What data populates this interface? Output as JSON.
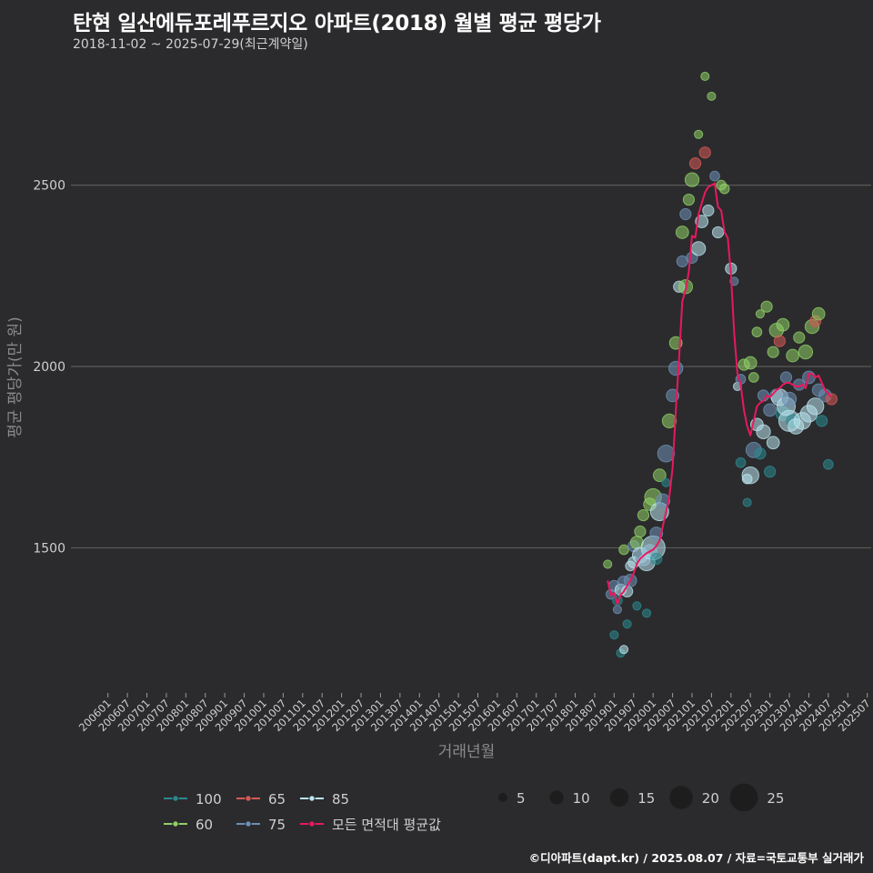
{
  "title": "탄현 일산에듀포레푸르지오 아파트(2018) 월별 평균 평당가",
  "subtitle": "2018-11-02 ~ 2025-07-29(최근계약일)",
  "footer": "©디아파트(dapt.kr) / 2025.08.07 / 자료=국토교통부 실거래가",
  "colors": {
    "background": "#2b2b2d",
    "grid": "#5a5a5a",
    "avg_line": "#e8195e",
    "area_100": "#2a8a8f",
    "area_65": "#d65a55",
    "area_85": "#b9e4ee",
    "area_60": "#8fd066",
    "area_75": "#6e8fb5"
  },
  "chart_data": {
    "type": "scatter",
    "xlabel": "거래년월",
    "ylabel": "평균 평당가(만 원)",
    "ylim": [
      1100,
      2860
    ],
    "yticks": [
      1500,
      2000,
      2500
    ],
    "grid": true,
    "xticks": [
      "200601",
      "200607",
      "200701",
      "200707",
      "200801",
      "200807",
      "200901",
      "200907",
      "201001",
      "201007",
      "201101",
      "201107",
      "201201",
      "201207",
      "201301",
      "201307",
      "201401",
      "201407",
      "201501",
      "201507",
      "201601",
      "201607",
      "201701",
      "201707",
      "201801",
      "201807",
      "201901",
      "201907",
      "202001",
      "202007",
      "202101",
      "202107",
      "202201",
      "202207",
      "202301",
      "202307",
      "202401",
      "202407",
      "202501",
      "202507"
    ],
    "legend_areas": [
      {
        "name": "100",
        "color_key": "area_100"
      },
      {
        "name": "60",
        "color_key": "area_60"
      },
      {
        "name": "65",
        "color_key": "area_65"
      },
      {
        "name": "75",
        "color_key": "area_75"
      },
      {
        "name": "85",
        "color_key": "area_85"
      },
      {
        "name": "모든 면적대 평균값",
        "color_key": "avg_line"
      }
    ],
    "legend_sizes": [
      5,
      10,
      15,
      20,
      25
    ],
    "avg_series": {
      "name": "모든 면적대 평균값",
      "points": [
        [
          "2018-11",
          1410
        ],
        [
          "2018-12",
          1370
        ],
        [
          "2019-01",
          1375
        ],
        [
          "2019-02",
          1345
        ],
        [
          "2019-03",
          1370
        ],
        [
          "2019-04",
          1380
        ],
        [
          "2019-05",
          1395
        ],
        [
          "2019-06",
          1410
        ],
        [
          "2019-07",
          1430
        ],
        [
          "2019-08",
          1455
        ],
        [
          "2019-09",
          1470
        ],
        [
          "2019-10",
          1478
        ],
        [
          "2019-11",
          1485
        ],
        [
          "2019-12",
          1490
        ],
        [
          "2020-01",
          1495
        ],
        [
          "2020-02",
          1505
        ],
        [
          "2020-03",
          1520
        ],
        [
          "2020-04",
          1560
        ],
        [
          "2020-05",
          1600
        ],
        [
          "2020-06",
          1640
        ],
        [
          "2020-07",
          1720
        ],
        [
          "2020-08",
          1880
        ],
        [
          "2020-09",
          2020
        ],
        [
          "2020-10",
          2180
        ],
        [
          "2020-11",
          2210
        ],
        [
          "2020-12",
          2260
        ],
        [
          "2021-01",
          2360
        ],
        [
          "2021-02",
          2355
        ],
        [
          "2021-03",
          2420
        ],
        [
          "2021-04",
          2450
        ],
        [
          "2021-05",
          2480
        ],
        [
          "2021-06",
          2495
        ],
        [
          "2021-07",
          2500
        ],
        [
          "2021-08",
          2505
        ],
        [
          "2021-09",
          2440
        ],
        [
          "2021-10",
          2430
        ],
        [
          "2021-11",
          2370
        ],
        [
          "2021-12",
          2355
        ],
        [
          "2022-01",
          2255
        ],
        [
          "2022-02",
          2090
        ],
        [
          "2022-03",
          1980
        ],
        [
          "2022-04",
          1950
        ],
        [
          "2022-05",
          1880
        ],
        [
          "2022-06",
          1835
        ],
        [
          "2022-07",
          1810
        ],
        [
          "2022-08",
          1850
        ],
        [
          "2022-09",
          1890
        ],
        [
          "2022-10",
          1900
        ],
        [
          "2022-11",
          1905
        ],
        [
          "2022-12",
          1920
        ],
        [
          "2023-01",
          1915
        ],
        [
          "2023-02",
          1925
        ],
        [
          "2023-03",
          1935
        ],
        [
          "2023-04",
          1940
        ],
        [
          "2023-05",
          1950
        ],
        [
          "2023-06",
          1955
        ],
        [
          "2023-07",
          1955
        ],
        [
          "2023-08",
          1950
        ],
        [
          "2023-09",
          1945
        ],
        [
          "2023-10",
          1945
        ],
        [
          "2023-11",
          1950
        ],
        [
          "2023-12",
          1940
        ],
        [
          "2024-01",
          1980
        ],
        [
          "2024-02",
          1980
        ],
        [
          "2024-03",
          1970
        ],
        [
          "2024-04",
          1975
        ],
        [
          "2024-05",
          1955
        ],
        [
          "2024-06",
          1935
        ],
        [
          "2024-07",
          1925
        ],
        [
          "2024-08",
          1915
        ]
      ]
    },
    "points": [
      {
        "x": "2018-11",
        "y": 1455,
        "size": 3,
        "area": "60"
      },
      {
        "x": "2018-12",
        "y": 1372,
        "size": 4,
        "area": "75"
      },
      {
        "x": "2019-01",
        "y": 1395,
        "size": 5,
        "area": "75"
      },
      {
        "x": "2019-01",
        "y": 1260,
        "size": 3,
        "area": "100"
      },
      {
        "x": "2019-02",
        "y": 1330,
        "size": 3,
        "area": "75"
      },
      {
        "x": "2019-02",
        "y": 1355,
        "size": 4,
        "area": "100"
      },
      {
        "x": "2019-03",
        "y": 1210,
        "size": 3,
        "area": "100"
      },
      {
        "x": "2019-03",
        "y": 1385,
        "size": 5,
        "area": "85"
      },
      {
        "x": "2019-04",
        "y": 1220,
        "size": 3,
        "area": "85"
      },
      {
        "x": "2019-04",
        "y": 1405,
        "size": 6,
        "area": "75"
      },
      {
        "x": "2019-04",
        "y": 1495,
        "size": 4,
        "area": "60"
      },
      {
        "x": "2019-05",
        "y": 1380,
        "size": 5,
        "area": "85"
      },
      {
        "x": "2019-05",
        "y": 1290,
        "size": 3,
        "area": "100"
      },
      {
        "x": "2019-06",
        "y": 1450,
        "size": 4,
        "area": "85"
      },
      {
        "x": "2019-06",
        "y": 1410,
        "size": 6,
        "area": "75"
      },
      {
        "x": "2019-07",
        "y": 1460,
        "size": 5,
        "area": "85"
      },
      {
        "x": "2019-07",
        "y": 1505,
        "size": 5,
        "area": "75"
      },
      {
        "x": "2019-08",
        "y": 1515,
        "size": 6,
        "area": "60"
      },
      {
        "x": "2019-08",
        "y": 1340,
        "size": 3,
        "area": "100"
      },
      {
        "x": "2019-09",
        "y": 1480,
        "size": 8,
        "area": "85"
      },
      {
        "x": "2019-09",
        "y": 1545,
        "size": 5,
        "area": "60"
      },
      {
        "x": "2019-10",
        "y": 1470,
        "size": 7,
        "area": "75"
      },
      {
        "x": "2019-10",
        "y": 1590,
        "size": 5,
        "area": "60"
      },
      {
        "x": "2019-11",
        "y": 1460,
        "size": 9,
        "area": "85"
      },
      {
        "x": "2019-11",
        "y": 1320,
        "size": 3,
        "area": "100"
      },
      {
        "x": "2019-12",
        "y": 1490,
        "size": 7,
        "area": "75"
      },
      {
        "x": "2019-12",
        "y": 1620,
        "size": 6,
        "area": "60"
      },
      {
        "x": "2020-01",
        "y": 1500,
        "size": 14,
        "area": "85"
      },
      {
        "x": "2020-01",
        "y": 1640,
        "size": 9,
        "area": "60"
      },
      {
        "x": "2020-02",
        "y": 1540,
        "size": 6,
        "area": "75"
      },
      {
        "x": "2020-02",
        "y": 1470,
        "size": 5,
        "area": "100"
      },
      {
        "x": "2020-03",
        "y": 1600,
        "size": 10,
        "area": "85"
      },
      {
        "x": "2020-03",
        "y": 1700,
        "size": 6,
        "area": "60"
      },
      {
        "x": "2020-04",
        "y": 1630,
        "size": 7,
        "area": "75"
      },
      {
        "x": "2020-05",
        "y": 1760,
        "size": 9,
        "area": "75"
      },
      {
        "x": "2020-05",
        "y": 1680,
        "size": 3,
        "area": "100"
      },
      {
        "x": "2020-06",
        "y": 1850,
        "size": 7,
        "area": "60"
      },
      {
        "x": "2020-07",
        "y": 1920,
        "size": 6,
        "area": "75"
      },
      {
        "x": "2020-08",
        "y": 1995,
        "size": 7,
        "area": "75"
      },
      {
        "x": "2020-08",
        "y": 2065,
        "size": 6,
        "area": "60"
      },
      {
        "x": "2020-09",
        "y": 2220,
        "size": 5,
        "area": "85"
      },
      {
        "x": "2020-10",
        "y": 2370,
        "size": 6,
        "area": "60"
      },
      {
        "x": "2020-10",
        "y": 2290,
        "size": 5,
        "area": "75"
      },
      {
        "x": "2020-11",
        "y": 2420,
        "size": 5,
        "area": "75"
      },
      {
        "x": "2020-11",
        "y": 2220,
        "size": 7,
        "area": "60"
      },
      {
        "x": "2020-12",
        "y": 2460,
        "size": 5,
        "area": "60"
      },
      {
        "x": "2021-01",
        "y": 2515,
        "size": 7,
        "area": "60"
      },
      {
        "x": "2021-01",
        "y": 2300,
        "size": 5,
        "area": "75"
      },
      {
        "x": "2021-02",
        "y": 2560,
        "size": 5,
        "area": "65"
      },
      {
        "x": "2021-03",
        "y": 2640,
        "size": 3,
        "area": "60"
      },
      {
        "x": "2021-03",
        "y": 2325,
        "size": 7,
        "area": "85"
      },
      {
        "x": "2021-04",
        "y": 2400,
        "size": 6,
        "area": "85"
      },
      {
        "x": "2021-05",
        "y": 2590,
        "size": 5,
        "area": "65"
      },
      {
        "x": "2021-05",
        "y": 2800,
        "size": 3,
        "area": "60"
      },
      {
        "x": "2021-06",
        "y": 2430,
        "size": 5,
        "area": "85"
      },
      {
        "x": "2021-07",
        "y": 2745,
        "size": 3,
        "area": "60"
      },
      {
        "x": "2021-08",
        "y": 2525,
        "size": 4,
        "area": "75"
      },
      {
        "x": "2021-09",
        "y": 2370,
        "size": 5,
        "area": "85"
      },
      {
        "x": "2021-10",
        "y": 2500,
        "size": 4,
        "area": "60"
      },
      {
        "x": "2021-11",
        "y": 2490,
        "size": 4,
        "area": "60"
      },
      {
        "x": "2022-01",
        "y": 2270,
        "size": 5,
        "area": "85"
      },
      {
        "x": "2022-02",
        "y": 2235,
        "size": 3,
        "area": "75"
      },
      {
        "x": "2022-03",
        "y": 1945,
        "size": 3,
        "area": "85"
      },
      {
        "x": "2022-04",
        "y": 1965,
        "size": 4,
        "area": "75"
      },
      {
        "x": "2022-04",
        "y": 1735,
        "size": 4,
        "area": "100"
      },
      {
        "x": "2022-05",
        "y": 2005,
        "size": 5,
        "area": "60"
      },
      {
        "x": "2022-06",
        "y": 1690,
        "size": 4,
        "area": "85"
      },
      {
        "x": "2022-06",
        "y": 1625,
        "size": 3,
        "area": "100"
      },
      {
        "x": "2022-07",
        "y": 1700,
        "size": 9,
        "area": "85"
      },
      {
        "x": "2022-07",
        "y": 2010,
        "size": 6,
        "area": "60"
      },
      {
        "x": "2022-08",
        "y": 1770,
        "size": 8,
        "area": "75"
      },
      {
        "x": "2022-08",
        "y": 1970,
        "size": 4,
        "area": "60"
      },
      {
        "x": "2022-09",
        "y": 1840,
        "size": 6,
        "area": "85"
      },
      {
        "x": "2022-09",
        "y": 2095,
        "size": 4,
        "area": "60"
      },
      {
        "x": "2022-10",
        "y": 1760,
        "size": 5,
        "area": "100"
      },
      {
        "x": "2022-10",
        "y": 2145,
        "size": 3,
        "area": "60"
      },
      {
        "x": "2022-11",
        "y": 1820,
        "size": 7,
        "area": "85"
      },
      {
        "x": "2022-11",
        "y": 1920,
        "size": 5,
        "area": "75"
      },
      {
        "x": "2022-12",
        "y": 2165,
        "size": 5,
        "area": "60"
      },
      {
        "x": "2023-01",
        "y": 1880,
        "size": 6,
        "area": "75"
      },
      {
        "x": "2023-01",
        "y": 1710,
        "size": 5,
        "area": "100"
      },
      {
        "x": "2023-02",
        "y": 1790,
        "size": 6,
        "area": "85"
      },
      {
        "x": "2023-02",
        "y": 2040,
        "size": 5,
        "area": "60"
      },
      {
        "x": "2023-03",
        "y": 1920,
        "size": 6,
        "area": "75"
      },
      {
        "x": "2023-03",
        "y": 2100,
        "size": 7,
        "area": "60"
      },
      {
        "x": "2023-04",
        "y": 1915,
        "size": 9,
        "area": "85"
      },
      {
        "x": "2023-04",
        "y": 2070,
        "size": 5,
        "area": "65"
      },
      {
        "x": "2023-05",
        "y": 1870,
        "size": 7,
        "area": "100"
      },
      {
        "x": "2023-05",
        "y": 2115,
        "size": 6,
        "area": "60"
      },
      {
        "x": "2023-06",
        "y": 1890,
        "size": 10,
        "area": "85"
      },
      {
        "x": "2023-06",
        "y": 1970,
        "size": 5,
        "area": "75"
      },
      {
        "x": "2023-07",
        "y": 1850,
        "size": 12,
        "area": "85"
      },
      {
        "x": "2023-07",
        "y": 1910,
        "size": 7,
        "area": "75"
      },
      {
        "x": "2023-08",
        "y": 2030,
        "size": 6,
        "area": "60"
      },
      {
        "x": "2023-08",
        "y": 1850,
        "size": 6,
        "area": "100"
      },
      {
        "x": "2023-09",
        "y": 1835,
        "size": 8,
        "area": "85"
      },
      {
        "x": "2023-10",
        "y": 2080,
        "size": 5,
        "area": "60"
      },
      {
        "x": "2023-10",
        "y": 1950,
        "size": 5,
        "area": "75"
      },
      {
        "x": "2023-11",
        "y": 1850,
        "size": 9,
        "area": "85"
      },
      {
        "x": "2023-12",
        "y": 2040,
        "size": 7,
        "area": "60"
      },
      {
        "x": "2024-01",
        "y": 1870,
        "size": 9,
        "area": "85"
      },
      {
        "x": "2024-01",
        "y": 1970,
        "size": 6,
        "area": "75"
      },
      {
        "x": "2024-02",
        "y": 2110,
        "size": 7,
        "area": "60"
      },
      {
        "x": "2024-03",
        "y": 1890,
        "size": 9,
        "area": "85"
      },
      {
        "x": "2024-03",
        "y": 2125,
        "size": 5,
        "area": "65"
      },
      {
        "x": "2024-04",
        "y": 2145,
        "size": 6,
        "area": "60"
      },
      {
        "x": "2024-04",
        "y": 1935,
        "size": 6,
        "area": "75"
      },
      {
        "x": "2024-05",
        "y": 1850,
        "size": 5,
        "area": "100"
      },
      {
        "x": "2024-06",
        "y": 1920,
        "size": 6,
        "area": "75"
      },
      {
        "x": "2024-07",
        "y": 1730,
        "size": 4,
        "area": "100"
      },
      {
        "x": "2024-08",
        "y": 1910,
        "size": 5,
        "area": "65"
      }
    ]
  }
}
